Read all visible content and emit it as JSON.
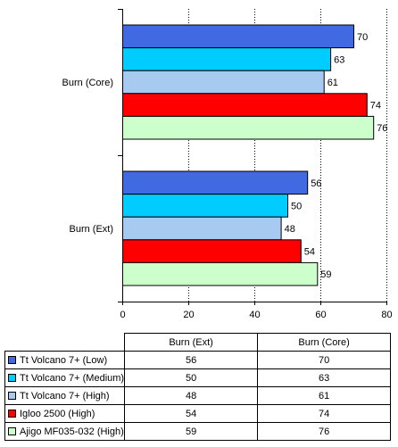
{
  "chart_data": {
    "type": "bar",
    "orientation": "horizontal",
    "groups": [
      "Burn (Core)",
      "Burn (Ext)"
    ],
    "series": [
      {
        "name": "Tt Volcano 7+ (Low)",
        "color": "#4169e1",
        "values": {
          "Burn (Core)": 70,
          "Burn (Ext)": 56
        }
      },
      {
        "name": "Tt Volcano 7+ (Medium)",
        "color": "#00ccff",
        "values": {
          "Burn (Core)": 63,
          "Burn (Ext)": 50
        }
      },
      {
        "name": "Tt Volcano 7+ (High)",
        "color": "#a6caf0",
        "values": {
          "Burn (Core)": 61,
          "Burn (Ext)": 48
        }
      },
      {
        "name": "Igloo 2500 (High)",
        "color": "#ff0000",
        "values": {
          "Burn (Core)": 74,
          "Burn (Ext)": 54
        }
      },
      {
        "name": "Ajigo MF035-032 (High)",
        "color": "#ccffcc",
        "values": {
          "Burn (Core)": 76,
          "Burn (Ext)": 59
        }
      }
    ],
    "xlim": [
      0,
      80
    ],
    "xticks": [
      "0",
      "20",
      "40",
      "60",
      "80"
    ],
    "grid": "vertical-dotted",
    "title": "",
    "xlabel": "",
    "ylabel": ""
  },
  "table": {
    "columns": [
      "Burn (Ext)",
      "Burn (Core)"
    ]
  }
}
